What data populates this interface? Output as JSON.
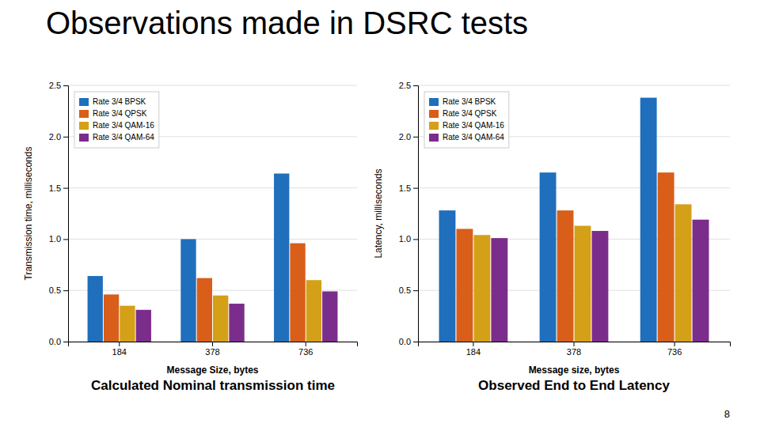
{
  "title": "Observations made in DSRC tests",
  "annotations": [
    "8"
  ],
  "chart_data": [
    {
      "type": "bar",
      "title": "Calculated Nominal transmission time",
      "xlabel": "Message Size, bytes",
      "ylabel": "Transmission time, milliseconds",
      "categories": [
        "184",
        "378",
        "736"
      ],
      "series": [
        {
          "name": "Rate 3/4 BPSK",
          "color": "#1f6fbd",
          "values": [
            0.64,
            1.0,
            1.64
          ]
        },
        {
          "name": "Rate 3/4 QPSK",
          "color": "#d95e1a",
          "values": [
            0.46,
            0.62,
            0.96
          ]
        },
        {
          "name": "Rate 3/4 QAM-16",
          "color": "#d4a017",
          "values": [
            0.35,
            0.45,
            0.6
          ]
        },
        {
          "name": "Rate 3/4 QAM-64",
          "color": "#7b2d8b",
          "values": [
            0.31,
            0.37,
            0.49
          ]
        }
      ],
      "ylim": [
        0,
        2.5
      ],
      "yticks": [
        {
          "value": 0,
          "label": "0.0"
        },
        0.5,
        {
          "value": 1,
          "label": "1.0"
        },
        1.5,
        {
          "value": 2,
          "label": "2.0"
        },
        2.5
      ],
      "grid": true,
      "legend": "upper left"
    },
    {
      "type": "bar",
      "title": "Observed End to End Latency",
      "xlabel": "Message size, bytes",
      "ylabel": "Latency, milliseconds",
      "categories": [
        "184",
        "378",
        "736"
      ],
      "series": [
        {
          "name": "Rate 3/4 BPSK",
          "color": "#1f6fbd",
          "values": [
            1.28,
            1.65,
            2.38
          ]
        },
        {
          "name": "Rate 3/4 QPSK",
          "color": "#d95e1a",
          "values": [
            1.1,
            1.28,
            1.65
          ]
        },
        {
          "name": "Rate 3/4 QAM-16",
          "color": "#d4a017",
          "values": [
            1.04,
            1.13,
            1.34
          ]
        },
        {
          "name": "Rate 3/4 QAM-64",
          "color": "#7b2d8b",
          "values": [
            1.01,
            1.08,
            1.19
          ]
        }
      ],
      "ylim": [
        0,
        2.5
      ],
      "yticks": [
        {
          "value": 0,
          "label": "0.0"
        },
        0.5,
        {
          "value": 1,
          "label": "1.0"
        },
        1.5,
        {
          "value": 2,
          "label": "2.0"
        },
        2.5
      ],
      "grid": true,
      "legend": "upper left"
    }
  ]
}
